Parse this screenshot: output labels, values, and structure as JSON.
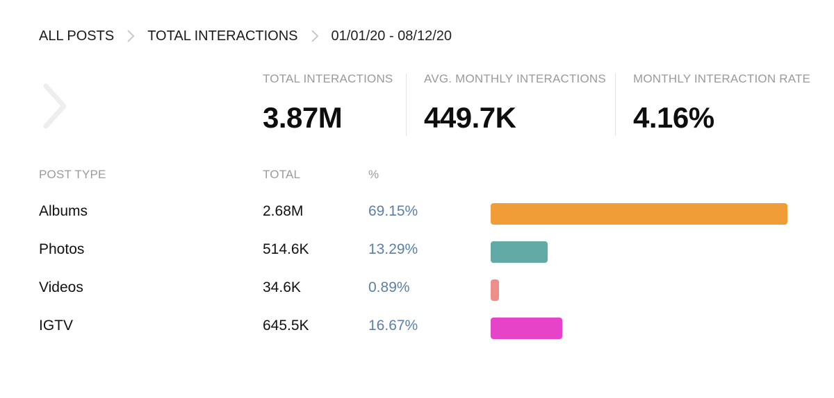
{
  "breadcrumb": {
    "all_posts": "ALL POSTS",
    "total_interactions": "TOTAL INTERACTIONS",
    "date_range": "01/01/20 - 08/12/20"
  },
  "stats": [
    {
      "label": "TOTAL INTERACTIONS",
      "value": "3.87M"
    },
    {
      "label": "AVG. MONTHLY INTERACTIONS",
      "value": "449.7K"
    },
    {
      "label": "MONTHLY INTERACTION RATE",
      "value": "4.16%"
    }
  ],
  "table": {
    "headers": {
      "type": "POST TYPE",
      "total": "TOTAL",
      "pct": "%"
    },
    "rows": [
      {
        "type": "Albums",
        "total": "2.68M",
        "pct": "69.15%",
        "share": 0.6915,
        "color": "#f09d38"
      },
      {
        "type": "Photos",
        "total": "514.6K",
        "pct": "13.29%",
        "share": 0.1329,
        "color": "#62aaa6"
      },
      {
        "type": "Videos",
        "total": "34.6K",
        "pct": "0.89%",
        "share": 0.0089,
        "color": "#ef8d8a"
      },
      {
        "type": "IGTV",
        "total": "645.5K",
        "pct": "16.67%",
        "share": 0.1667,
        "color": "#e643c8"
      }
    ]
  },
  "icons": {
    "breadcrumb_separator": "chevron-right-icon",
    "nav": "chevron-right-icon"
  }
}
